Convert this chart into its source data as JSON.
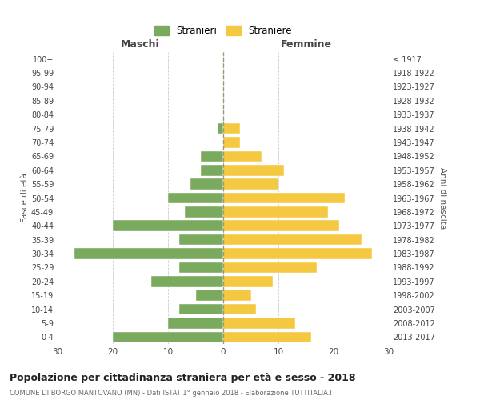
{
  "age_groups": [
    "0-4",
    "5-9",
    "10-14",
    "15-19",
    "20-24",
    "25-29",
    "30-34",
    "35-39",
    "40-44",
    "45-49",
    "50-54",
    "55-59",
    "60-64",
    "65-69",
    "70-74",
    "75-79",
    "80-84",
    "85-89",
    "90-94",
    "95-99",
    "100+"
  ],
  "birth_years": [
    "2013-2017",
    "2008-2012",
    "2003-2007",
    "1998-2002",
    "1993-1997",
    "1988-1992",
    "1983-1987",
    "1978-1982",
    "1973-1977",
    "1968-1972",
    "1963-1967",
    "1958-1962",
    "1953-1957",
    "1948-1952",
    "1943-1947",
    "1938-1942",
    "1933-1937",
    "1928-1932",
    "1923-1927",
    "1918-1922",
    "≤ 1917"
  ],
  "maschi": [
    20,
    10,
    8,
    5,
    13,
    8,
    27,
    8,
    20,
    7,
    10,
    6,
    4,
    4,
    0,
    1,
    0,
    0,
    0,
    0,
    0
  ],
  "femmine": [
    16,
    13,
    6,
    5,
    9,
    17,
    27,
    25,
    21,
    19,
    22,
    10,
    11,
    7,
    3,
    3,
    0,
    0,
    0,
    0,
    0
  ],
  "color_maschi": "#7aaa5d",
  "color_femmine": "#f5c842",
  "background_color": "#ffffff",
  "grid_color": "#cccccc",
  "title": "Popolazione per cittadinanza straniera per età e sesso - 2018",
  "subtitle": "COMUNE DI BORGO MANTOVANO (MN) - Dati ISTAT 1° gennaio 2018 - Elaborazione TUTTITALIA.IT",
  "ylabel_left": "Fasce di età",
  "ylabel_right": "Anni di nascita",
  "label_maschi": "Maschi",
  "label_femmine": "Femmine",
  "legend_maschi": "Stranieri",
  "legend_femmine": "Straniere",
  "xlim": 30
}
